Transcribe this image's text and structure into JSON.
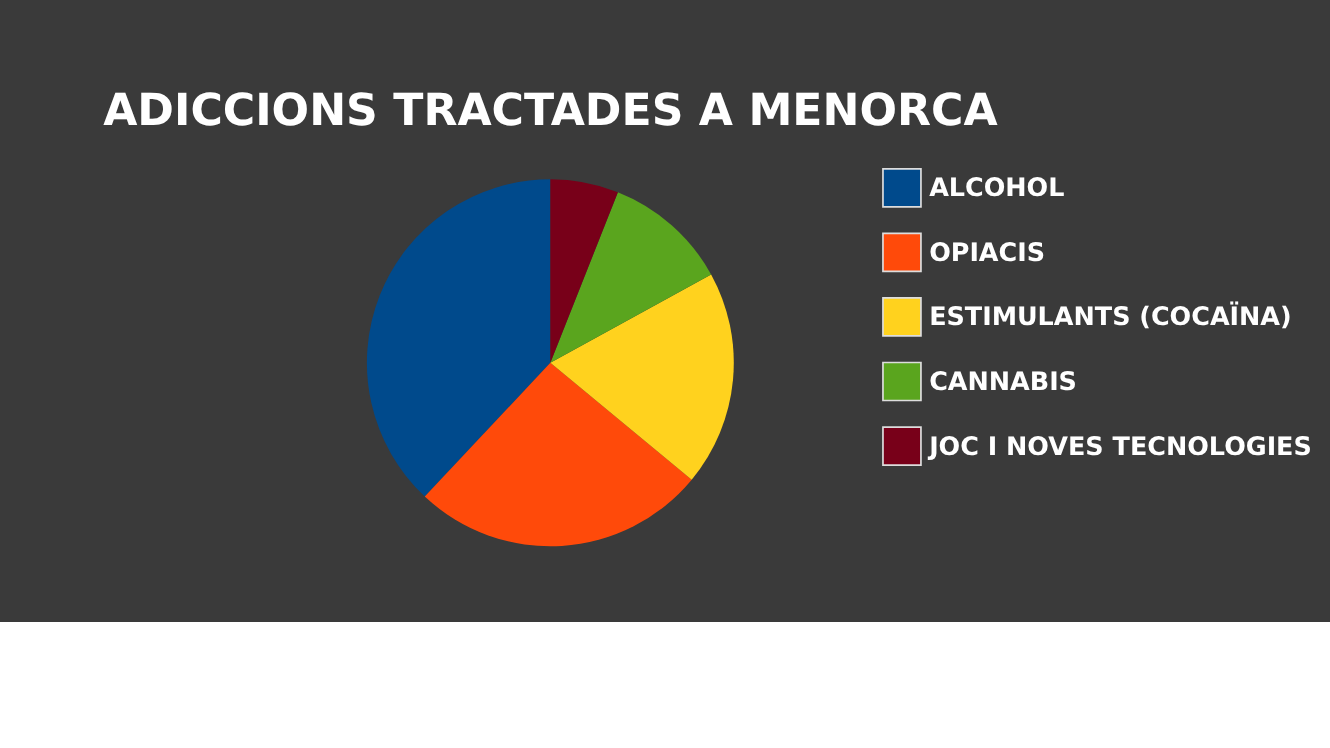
{
  "chart_data": {
    "type": "pie",
    "title": "ADICCIONS TRACTADES A MENORCA",
    "categories": [
      "ALCOHOL",
      "OPIACIS",
      "ESTIMULANTS (COCAÏNA)",
      "CANNABIS",
      "JOC I NOVES TECNOLOGIES"
    ],
    "values": [
      38,
      26,
      19,
      11,
      6
    ],
    "colors": [
      "#004a8c",
      "#ff4a0a",
      "#ffd21e",
      "#5aa51e",
      "#780019"
    ],
    "legend": "right"
  }
}
